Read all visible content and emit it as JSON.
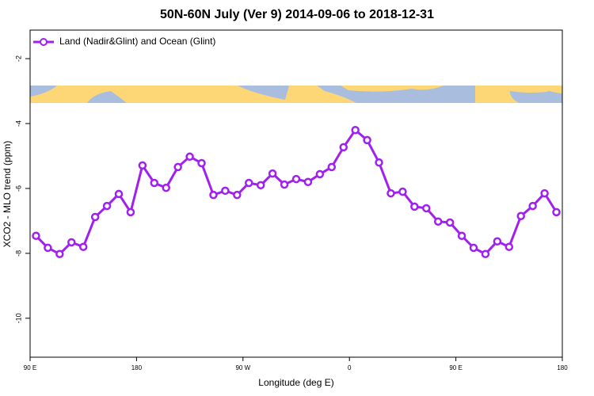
{
  "chart_data": {
    "type": "line",
    "title": "50N-60N July (Ver 9)   2014-09-06 to 2018-12-31",
    "x_label": "Longitude (deg E)",
    "y_label": "XCO2 - MLO trend (ppm)",
    "x": [
      95,
      105,
      115,
      125,
      135,
      145,
      155,
      165,
      175,
      185,
      195,
      205,
      215,
      225,
      235,
      245,
      255,
      265,
      275,
      285,
      295,
      305,
      315,
      325,
      335,
      345,
      355,
      365,
      375,
      385,
      395,
      405,
      415,
      425,
      435,
      445,
      455,
      465,
      475,
      485,
      495,
      505,
      515,
      525,
      535
    ],
    "series": [
      {
        "name": "Land (Nadir&Glint) and Ocean (Glint)",
        "color": "#a020f0",
        "values": [
          -7.46,
          -7.83,
          -8.02,
          -7.66,
          -7.8,
          -6.88,
          -6.54,
          -6.17,
          -6.73,
          -5.29,
          -5.83,
          -5.98,
          -5.34,
          -5.02,
          -5.22,
          -6.2,
          -6.07,
          -6.2,
          -5.83,
          -5.9,
          -5.54,
          -5.88,
          -5.71,
          -5.8,
          -5.56,
          -5.34,
          -4.73,
          -4.2,
          -4.51,
          -5.2,
          -6.15,
          -6.1,
          -6.56,
          -6.61,
          -7.02,
          -7.05,
          -7.46,
          -7.83,
          -8.02,
          -7.63,
          -7.8,
          -6.85,
          -6.54,
          -6.15,
          -6.73
        ]
      }
    ],
    "xlim": [
      90,
      540
    ],
    "xticks": [
      {
        "value": 90,
        "label": "90 E"
      },
      180,
      {
        "value": 270,
        "label": "90 W"
      },
      {
        "value": 360,
        "label": "0"
      },
      {
        "value": 450,
        "label": "90 E"
      },
      {
        "value": 540,
        "label": "180"
      }
    ],
    "ylim": [
      -11.2,
      -1.12
    ],
    "yticks": [
      -2,
      -4,
      -6,
      -8,
      -10
    ],
    "legend": "top-left"
  }
}
